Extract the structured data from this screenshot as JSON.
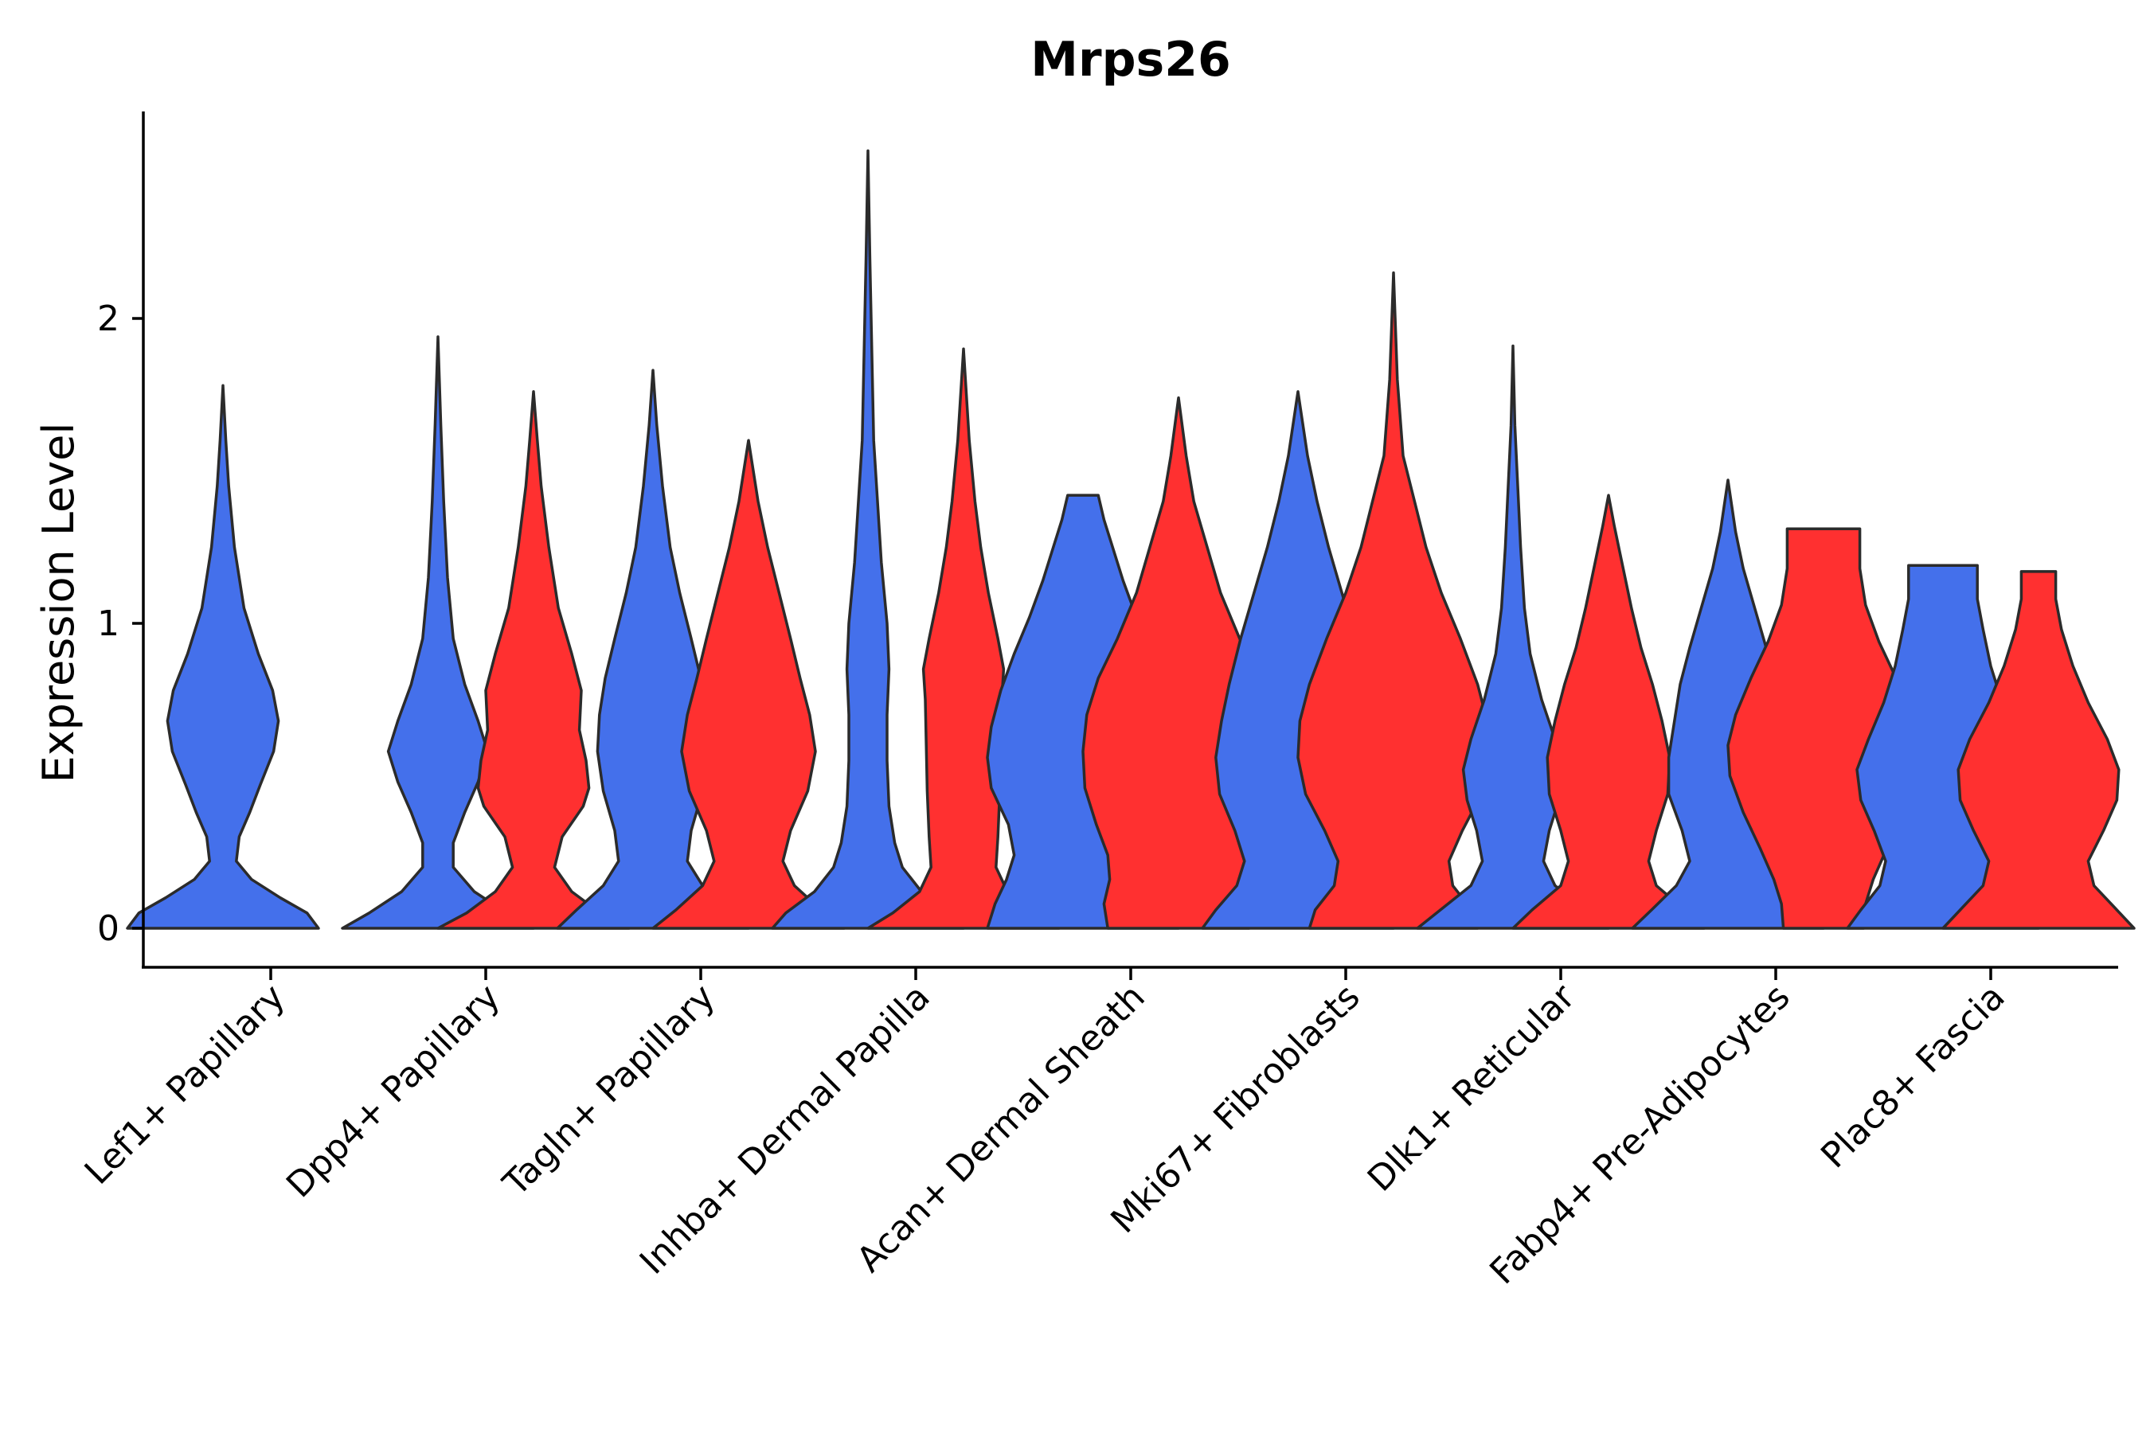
{
  "chart_data": {
    "type": "violin",
    "title": "Mrps26",
    "xlabel": "",
    "ylabel": "Expression Level",
    "ylim": [
      -0.13,
      2.7
    ],
    "y_ticks": [
      0,
      1,
      2
    ],
    "grid": false,
    "legend": "none",
    "colors": {
      "group_a": "#4470EB",
      "group_b": "#FF3030",
      "outline": "#2b2b2b"
    },
    "categories": [
      "Lef1+ Papillary",
      "Dpp4+ Papillary",
      "Tagln+ Papillary",
      "Inhba+ Dermal Papilla",
      "Acan+ Dermal Sheath",
      "Mki67+ Fibroblasts",
      "Dlk1+ Reticular",
      "Fabp4+ Pre-Adipocytes",
      "Plac8+ Fascia"
    ],
    "violins": [
      {
        "category": 0,
        "group": "a",
        "max": 1.78,
        "profile": [
          [
            0,
            1.0
          ],
          [
            0.05,
            0.88
          ],
          [
            0.1,
            0.6
          ],
          [
            0.16,
            0.3
          ],
          [
            0.22,
            0.14
          ],
          [
            0.3,
            0.17
          ],
          [
            0.38,
            0.28
          ],
          [
            0.47,
            0.39
          ],
          [
            0.58,
            0.53
          ],
          [
            0.68,
            0.58
          ],
          [
            0.78,
            0.52
          ],
          [
            0.9,
            0.37
          ],
          [
            1.05,
            0.22
          ],
          [
            1.25,
            0.12
          ],
          [
            1.45,
            0.06
          ],
          [
            1.6,
            0.03
          ],
          [
            1.78,
            0.0
          ]
        ]
      },
      {
        "category": 1,
        "group": "a",
        "max": 1.94,
        "profile": [
          [
            0,
            1.0
          ],
          [
            0.05,
            0.72
          ],
          [
            0.12,
            0.38
          ],
          [
            0.2,
            0.16
          ],
          [
            0.28,
            0.16
          ],
          [
            0.38,
            0.28
          ],
          [
            0.48,
            0.42
          ],
          [
            0.58,
            0.52
          ],
          [
            0.68,
            0.42
          ],
          [
            0.8,
            0.28
          ],
          [
            0.95,
            0.16
          ],
          [
            1.15,
            0.1
          ],
          [
            1.4,
            0.06
          ],
          [
            1.65,
            0.03
          ],
          [
            1.94,
            0.0
          ]
        ]
      },
      {
        "category": 1,
        "group": "b",
        "max": 1.76,
        "profile": [
          [
            0,
            1.0
          ],
          [
            0.05,
            0.7
          ],
          [
            0.12,
            0.4
          ],
          [
            0.2,
            0.22
          ],
          [
            0.3,
            0.3
          ],
          [
            0.4,
            0.52
          ],
          [
            0.46,
            0.58
          ],
          [
            0.55,
            0.55
          ],
          [
            0.65,
            0.48
          ],
          [
            0.78,
            0.5
          ],
          [
            0.9,
            0.4
          ],
          [
            1.05,
            0.26
          ],
          [
            1.25,
            0.16
          ],
          [
            1.45,
            0.08
          ],
          [
            1.6,
            0.04
          ],
          [
            1.76,
            0.0
          ]
        ]
      },
      {
        "category": 2,
        "group": "a",
        "max": 1.83,
        "profile": [
          [
            0,
            1.0
          ],
          [
            0.06,
            0.8
          ],
          [
            0.14,
            0.52
          ],
          [
            0.22,
            0.36
          ],
          [
            0.32,
            0.4
          ],
          [
            0.45,
            0.52
          ],
          [
            0.58,
            0.58
          ],
          [
            0.7,
            0.56
          ],
          [
            0.82,
            0.5
          ],
          [
            0.95,
            0.4
          ],
          [
            1.1,
            0.28
          ],
          [
            1.25,
            0.18
          ],
          [
            1.45,
            0.1
          ],
          [
            1.65,
            0.04
          ],
          [
            1.83,
            0.0
          ]
        ]
      },
      {
        "category": 2,
        "group": "b",
        "max": 1.6,
        "profile": [
          [
            0,
            1.0
          ],
          [
            0.06,
            0.76
          ],
          [
            0.14,
            0.48
          ],
          [
            0.22,
            0.36
          ],
          [
            0.32,
            0.44
          ],
          [
            0.45,
            0.62
          ],
          [
            0.58,
            0.7
          ],
          [
            0.7,
            0.64
          ],
          [
            0.82,
            0.54
          ],
          [
            0.95,
            0.44
          ],
          [
            1.1,
            0.32
          ],
          [
            1.25,
            0.2
          ],
          [
            1.4,
            0.1
          ],
          [
            1.52,
            0.04
          ],
          [
            1.6,
            0.0
          ]
        ]
      },
      {
        "category": 3,
        "group": "a",
        "max": 2.55,
        "profile": [
          [
            0,
            1.0
          ],
          [
            0.05,
            0.86
          ],
          [
            0.12,
            0.56
          ],
          [
            0.2,
            0.36
          ],
          [
            0.28,
            0.28
          ],
          [
            0.4,
            0.22
          ],
          [
            0.55,
            0.2
          ],
          [
            0.7,
            0.2
          ],
          [
            0.85,
            0.22
          ],
          [
            1.0,
            0.2
          ],
          [
            1.2,
            0.14
          ],
          [
            1.4,
            0.1
          ],
          [
            1.6,
            0.06
          ],
          [
            1.9,
            0.04
          ],
          [
            2.2,
            0.02
          ],
          [
            2.55,
            0.0
          ]
        ]
      },
      {
        "category": 3,
        "group": "b",
        "max": 1.9,
        "profile": [
          [
            0,
            1.0
          ],
          [
            0.05,
            0.74
          ],
          [
            0.12,
            0.46
          ],
          [
            0.2,
            0.34
          ],
          [
            0.3,
            0.36
          ],
          [
            0.45,
            0.38
          ],
          [
            0.6,
            0.39
          ],
          [
            0.75,
            0.4
          ],
          [
            0.85,
            0.42
          ],
          [
            0.95,
            0.36
          ],
          [
            1.1,
            0.26
          ],
          [
            1.25,
            0.18
          ],
          [
            1.4,
            0.12
          ],
          [
            1.6,
            0.06
          ],
          [
            1.9,
            0.0
          ]
        ]
      },
      {
        "category": 4,
        "group": "a",
        "max": 1.42,
        "profile": [
          [
            0,
            1.0
          ],
          [
            0.08,
            0.92
          ],
          [
            0.16,
            0.8
          ],
          [
            0.24,
            0.72
          ],
          [
            0.34,
            0.78
          ],
          [
            0.46,
            0.96
          ],
          [
            0.56,
            1.0
          ],
          [
            0.66,
            0.96
          ],
          [
            0.78,
            0.86
          ],
          [
            0.9,
            0.72
          ],
          [
            1.02,
            0.56
          ],
          [
            1.14,
            0.42
          ],
          [
            1.26,
            0.3
          ],
          [
            1.34,
            0.22
          ],
          [
            1.42,
            0.16
          ]
        ]
      },
      {
        "category": 4,
        "group": "b",
        "max": 1.74,
        "profile": [
          [
            0,
            0.74
          ],
          [
            0.08,
            0.78
          ],
          [
            0.16,
            0.72
          ],
          [
            0.24,
            0.74
          ],
          [
            0.34,
            0.86
          ],
          [
            0.46,
            0.98
          ],
          [
            0.58,
            1.0
          ],
          [
            0.7,
            0.96
          ],
          [
            0.82,
            0.84
          ],
          [
            0.95,
            0.64
          ],
          [
            1.1,
            0.44
          ],
          [
            1.25,
            0.3
          ],
          [
            1.4,
            0.16
          ],
          [
            1.55,
            0.08
          ],
          [
            1.74,
            0.0
          ]
        ]
      },
      {
        "category": 5,
        "group": "a",
        "max": 1.76,
        "profile": [
          [
            0,
            1.0
          ],
          [
            0.06,
            0.86
          ],
          [
            0.14,
            0.64
          ],
          [
            0.22,
            0.56
          ],
          [
            0.32,
            0.66
          ],
          [
            0.44,
            0.82
          ],
          [
            0.56,
            0.86
          ],
          [
            0.68,
            0.8
          ],
          [
            0.8,
            0.72
          ],
          [
            0.95,
            0.6
          ],
          [
            1.1,
            0.46
          ],
          [
            1.25,
            0.32
          ],
          [
            1.4,
            0.2
          ],
          [
            1.55,
            0.1
          ],
          [
            1.76,
            0.0
          ]
        ]
      },
      {
        "category": 5,
        "group": "b",
        "max": 2.15,
        "profile": [
          [
            0,
            0.88
          ],
          [
            0.06,
            0.82
          ],
          [
            0.14,
            0.62
          ],
          [
            0.22,
            0.58
          ],
          [
            0.32,
            0.72
          ],
          [
            0.44,
            0.92
          ],
          [
            0.56,
            1.0
          ],
          [
            0.68,
            0.98
          ],
          [
            0.8,
            0.88
          ],
          [
            0.95,
            0.7
          ],
          [
            1.1,
            0.5
          ],
          [
            1.25,
            0.34
          ],
          [
            1.4,
            0.22
          ],
          [
            1.55,
            0.1
          ],
          [
            1.8,
            0.04
          ],
          [
            2.15,
            0.0
          ]
        ]
      },
      {
        "category": 6,
        "group": "a",
        "max": 1.91,
        "profile": [
          [
            0,
            1.0
          ],
          [
            0.06,
            0.76
          ],
          [
            0.14,
            0.44
          ],
          [
            0.22,
            0.32
          ],
          [
            0.32,
            0.38
          ],
          [
            0.42,
            0.48
          ],
          [
            0.52,
            0.52
          ],
          [
            0.62,
            0.44
          ],
          [
            0.75,
            0.3
          ],
          [
            0.9,
            0.18
          ],
          [
            1.05,
            0.12
          ],
          [
            1.25,
            0.08
          ],
          [
            1.45,
            0.05
          ],
          [
            1.65,
            0.02
          ],
          [
            1.91,
            0.0
          ]
        ]
      },
      {
        "category": 6,
        "group": "b",
        "max": 1.42,
        "profile": [
          [
            0,
            1.0
          ],
          [
            0.06,
            0.8
          ],
          [
            0.14,
            0.5
          ],
          [
            0.22,
            0.42
          ],
          [
            0.32,
            0.5
          ],
          [
            0.44,
            0.62
          ],
          [
            0.56,
            0.64
          ],
          [
            0.68,
            0.56
          ],
          [
            0.8,
            0.46
          ],
          [
            0.92,
            0.34
          ],
          [
            1.05,
            0.24
          ],
          [
            1.2,
            0.14
          ],
          [
            1.32,
            0.06
          ],
          [
            1.42,
            0.0
          ]
        ]
      },
      {
        "category": 7,
        "group": "a",
        "max": 1.47,
        "profile": [
          [
            0,
            1.0
          ],
          [
            0.06,
            0.8
          ],
          [
            0.14,
            0.54
          ],
          [
            0.22,
            0.4
          ],
          [
            0.32,
            0.48
          ],
          [
            0.44,
            0.62
          ],
          [
            0.56,
            0.62
          ],
          [
            0.68,
            0.56
          ],
          [
            0.8,
            0.5
          ],
          [
            0.92,
            0.4
          ],
          [
            1.05,
            0.28
          ],
          [
            1.18,
            0.16
          ],
          [
            1.3,
            0.08
          ],
          [
            1.47,
            0.0
          ]
        ]
      },
      {
        "category": 7,
        "group": "b",
        "max": 1.31,
        "profile": [
          [
            0,
            0.42
          ],
          [
            0.08,
            0.44
          ],
          [
            0.16,
            0.52
          ],
          [
            0.26,
            0.66
          ],
          [
            0.38,
            0.84
          ],
          [
            0.5,
            0.98
          ],
          [
            0.6,
            1.0
          ],
          [
            0.7,
            0.92
          ],
          [
            0.82,
            0.76
          ],
          [
            0.94,
            0.58
          ],
          [
            1.06,
            0.44
          ],
          [
            1.18,
            0.38
          ],
          [
            1.31,
            0.38
          ]
        ]
      },
      {
        "category": 8,
        "group": "a",
        "max": 1.19,
        "profile": [
          [
            0,
            1.0
          ],
          [
            0.06,
            0.86
          ],
          [
            0.14,
            0.66
          ],
          [
            0.22,
            0.6
          ],
          [
            0.32,
            0.72
          ],
          [
            0.42,
            0.86
          ],
          [
            0.52,
            0.9
          ],
          [
            0.62,
            0.78
          ],
          [
            0.74,
            0.62
          ],
          [
            0.86,
            0.5
          ],
          [
            0.98,
            0.42
          ],
          [
            1.08,
            0.36
          ],
          [
            1.19,
            0.36
          ]
        ]
      },
      {
        "category": 8,
        "group": "b",
        "max": 1.17,
        "profile": [
          [
            0,
            1.0
          ],
          [
            0.06,
            0.82
          ],
          [
            0.14,
            0.58
          ],
          [
            0.22,
            0.52
          ],
          [
            0.32,
            0.68
          ],
          [
            0.42,
            0.82
          ],
          [
            0.52,
            0.84
          ],
          [
            0.62,
            0.72
          ],
          [
            0.74,
            0.52
          ],
          [
            0.86,
            0.36
          ],
          [
            0.98,
            0.24
          ],
          [
            1.08,
            0.18
          ],
          [
            1.17,
            0.18
          ]
        ]
      }
    ]
  }
}
